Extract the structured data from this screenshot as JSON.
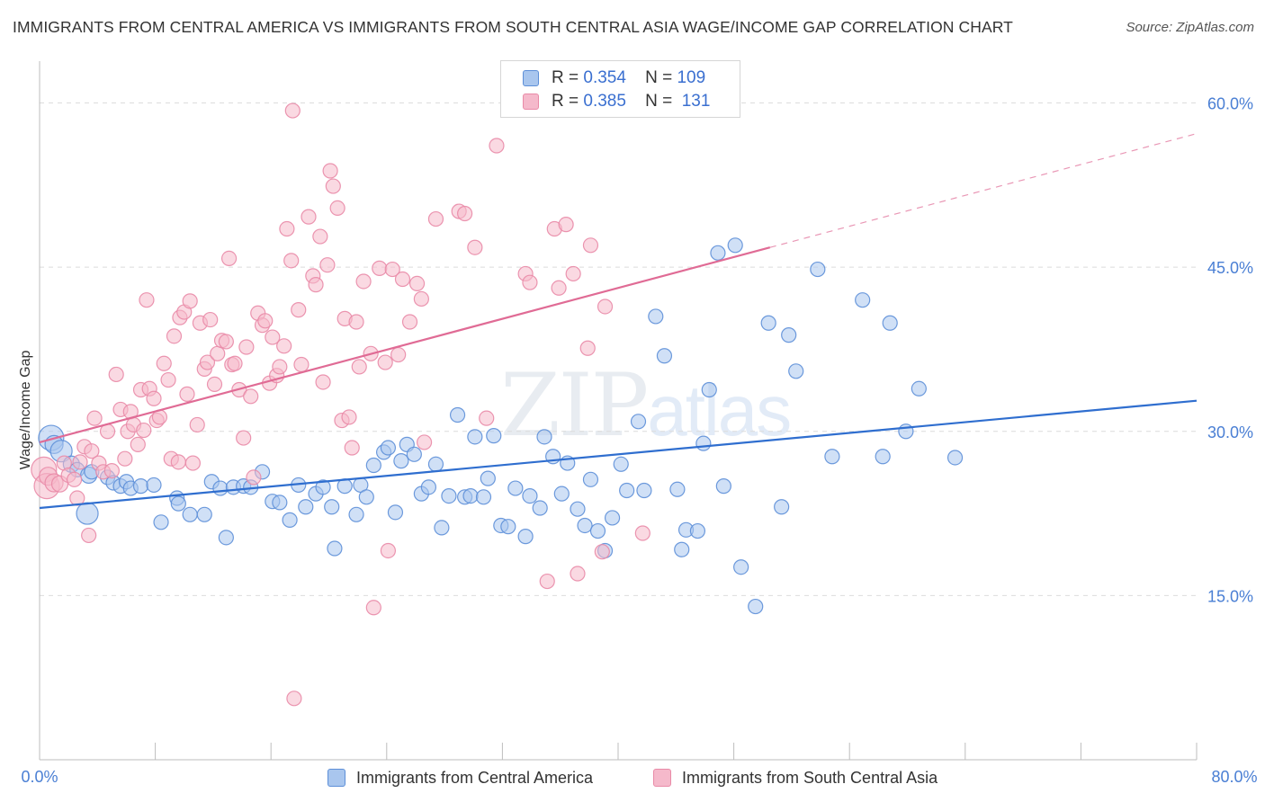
{
  "header": {
    "title": "IMMIGRANTS FROM CENTRAL AMERICA VS IMMIGRANTS FROM SOUTH CENTRAL ASIA WAGE/INCOME GAP CORRELATION CHART",
    "source": "Source: ZipAtlas.com"
  },
  "watermark": {
    "main": "ZIP",
    "sub": "atlas"
  },
  "legend_top": {
    "rows": [
      {
        "r_label": "R =",
        "r_value": "0.354",
        "n_label": "N =",
        "n_value": "109"
      },
      {
        "r_label": "R =",
        "r_value": "0.385",
        "n_label": "N =",
        "n_value": "131"
      }
    ]
  },
  "colors": {
    "blue_fill": "#a9c6ee",
    "blue_stroke": "#5d8fd8",
    "blue_line": "#2f6ecf",
    "pink_fill": "#f5b9cb",
    "pink_stroke": "#e98aa7",
    "pink_line": "#e06b95",
    "grid": "#dcdcdc",
    "tick_text": "#4a7fd4"
  },
  "chart_data": {
    "type": "scatter",
    "title": "IMMIGRANTS FROM CENTRAL AMERICA VS IMMIGRANTS FROM SOUTH CENTRAL ASIA WAGE/INCOME GAP CORRELATION CHART",
    "xlabel": "",
    "ylabel": "Wage/Income Gap",
    "xlim": [
      0,
      80
    ],
    "ylim": [
      0,
      63
    ],
    "x_tick_labels": [
      "0.0%",
      "80.0%"
    ],
    "y_ticks": [
      15,
      30,
      45,
      60
    ],
    "y_tick_labels": [
      "15.0%",
      "30.0%",
      "45.0%",
      "60.0%"
    ],
    "grid": "horizontal dashed",
    "legend_position": "top-center",
    "series": [
      {
        "name": "Immigrants from Central America",
        "r": 0.354,
        "n": 109,
        "trend": {
          "x": [
            0,
            80
          ],
          "y": [
            23.0,
            32.8
          ]
        },
        "points": [
          [
            0.8,
            29.4,
            14
          ],
          [
            1.0,
            28.8,
            10
          ],
          [
            1.5,
            28.2,
            12
          ],
          [
            2.2,
            27.0,
            9
          ],
          [
            2.6,
            26.5,
            8
          ],
          [
            3.4,
            26.0,
            9
          ],
          [
            3.6,
            26.3,
            8
          ],
          [
            3.3,
            22.5,
            12
          ],
          [
            4.7,
            25.8,
            8
          ],
          [
            5.1,
            25.3,
            8
          ],
          [
            5.6,
            25.0,
            8
          ],
          [
            6.0,
            25.4,
            8
          ],
          [
            6.3,
            24.8,
            8
          ],
          [
            7.0,
            25.0,
            8
          ],
          [
            7.9,
            25.1,
            8
          ],
          [
            8.4,
            21.7,
            8
          ],
          [
            9.5,
            23.9,
            8
          ],
          [
            9.6,
            23.4,
            8
          ],
          [
            10.4,
            22.4,
            8
          ],
          [
            11.4,
            22.4,
            8
          ],
          [
            11.9,
            25.4,
            8
          ],
          [
            12.5,
            24.8,
            8
          ],
          [
            12.9,
            20.3,
            8
          ],
          [
            13.4,
            24.9,
            8
          ],
          [
            14.1,
            25.0,
            8
          ],
          [
            14.6,
            24.9,
            8
          ],
          [
            15.4,
            26.3,
            8
          ],
          [
            16.1,
            23.6,
            8
          ],
          [
            16.6,
            23.5,
            8
          ],
          [
            17.3,
            21.9,
            8
          ],
          [
            17.9,
            25.1,
            8
          ],
          [
            18.4,
            23.1,
            8
          ],
          [
            19.1,
            24.3,
            8
          ],
          [
            19.6,
            24.9,
            8
          ],
          [
            20.2,
            23.1,
            8
          ],
          [
            20.4,
            19.3,
            8
          ],
          [
            21.1,
            25.0,
            8
          ],
          [
            21.9,
            22.4,
            8
          ],
          [
            22.2,
            25.1,
            8
          ],
          [
            22.6,
            24.0,
            8
          ],
          [
            23.1,
            26.9,
            8
          ],
          [
            23.8,
            28.1,
            8
          ],
          [
            24.1,
            28.5,
            8
          ],
          [
            24.6,
            22.6,
            8
          ],
          [
            25.0,
            27.3,
            8
          ],
          [
            25.4,
            28.8,
            8
          ],
          [
            25.9,
            27.9,
            8
          ],
          [
            26.4,
            24.3,
            8
          ],
          [
            26.9,
            24.9,
            8
          ],
          [
            27.4,
            27.0,
            8
          ],
          [
            27.8,
            21.2,
            8
          ],
          [
            28.3,
            24.1,
            8
          ],
          [
            28.9,
            31.5,
            8
          ],
          [
            29.4,
            24.0,
            8
          ],
          [
            29.8,
            24.1,
            8
          ],
          [
            30.1,
            29.5,
            8
          ],
          [
            30.7,
            24.0,
            8
          ],
          [
            31.0,
            25.7,
            8
          ],
          [
            31.4,
            29.6,
            8
          ],
          [
            31.9,
            21.4,
            8
          ],
          [
            32.4,
            21.3,
            8
          ],
          [
            32.9,
            24.8,
            8
          ],
          [
            33.6,
            20.4,
            8
          ],
          [
            33.9,
            24.1,
            8
          ],
          [
            34.6,
            23.0,
            8
          ],
          [
            34.9,
            29.5,
            8
          ],
          [
            35.5,
            27.7,
            8
          ],
          [
            36.1,
            24.3,
            8
          ],
          [
            36.5,
            27.1,
            8
          ],
          [
            37.2,
            22.9,
            8
          ],
          [
            37.7,
            21.4,
            8
          ],
          [
            38.1,
            25.6,
            8
          ],
          [
            38.6,
            20.9,
            8
          ],
          [
            39.1,
            19.1,
            8
          ],
          [
            39.6,
            22.1,
            8
          ],
          [
            40.2,
            27.0,
            8
          ],
          [
            40.6,
            24.6,
            8
          ],
          [
            41.4,
            30.9,
            8
          ],
          [
            41.8,
            24.6,
            8
          ],
          [
            42.6,
            40.5,
            8
          ],
          [
            43.2,
            36.9,
            8
          ],
          [
            44.1,
            24.7,
            8
          ],
          [
            44.4,
            19.2,
            8
          ],
          [
            44.7,
            21.0,
            8
          ],
          [
            45.5,
            20.9,
            8
          ],
          [
            45.9,
            28.9,
            8
          ],
          [
            46.3,
            33.8,
            8
          ],
          [
            46.9,
            46.3,
            8
          ],
          [
            47.3,
            25.0,
            8
          ],
          [
            48.1,
            47.0,
            8
          ],
          [
            48.5,
            17.6,
            8
          ],
          [
            49.5,
            14.0,
            8
          ],
          [
            50.4,
            39.9,
            8
          ],
          [
            51.3,
            23.1,
            8
          ],
          [
            51.8,
            38.8,
            8
          ],
          [
            52.3,
            35.5,
            8
          ],
          [
            53.8,
            44.8,
            8
          ],
          [
            54.8,
            27.7,
            8
          ],
          [
            56.9,
            42.0,
            8
          ],
          [
            58.3,
            27.7,
            8
          ],
          [
            58.8,
            39.9,
            8
          ],
          [
            59.9,
            30.0,
            8
          ],
          [
            60.8,
            33.9,
            8
          ],
          [
            63.3,
            27.6,
            8
          ]
        ]
      },
      {
        "name": "Immigrants from South Central Asia",
        "r": 0.385,
        "n": 131,
        "trend": {
          "x": [
            0,
            50.5
          ],
          "y": [
            29.0,
            46.8
          ]
        },
        "trend_dashed": {
          "x": [
            50.5,
            80
          ],
          "y": [
            46.8,
            57.2
          ]
        },
        "points": [
          [
            0.3,
            26.5,
            14
          ],
          [
            0.5,
            25.0,
            14
          ],
          [
            0.6,
            25.9,
            10
          ],
          [
            1.0,
            25.3,
            10
          ],
          [
            1.4,
            25.2,
            9
          ],
          [
            1.7,
            27.1,
            8
          ],
          [
            2.0,
            26.0,
            8
          ],
          [
            2.4,
            25.6,
            8
          ],
          [
            2.6,
            23.9,
            8
          ],
          [
            2.8,
            27.2,
            8
          ],
          [
            3.1,
            28.6,
            8
          ],
          [
            3.4,
            20.5,
            8
          ],
          [
            3.6,
            28.2,
            8
          ],
          [
            3.8,
            31.2,
            8
          ],
          [
            4.1,
            27.1,
            8
          ],
          [
            4.4,
            26.3,
            8
          ],
          [
            4.7,
            30.0,
            8
          ],
          [
            5.0,
            26.4,
            8
          ],
          [
            5.3,
            35.2,
            8
          ],
          [
            5.6,
            32.0,
            8
          ],
          [
            5.9,
            27.5,
            8
          ],
          [
            6.1,
            30.0,
            8
          ],
          [
            6.3,
            31.8,
            8
          ],
          [
            6.5,
            30.6,
            8
          ],
          [
            6.8,
            28.8,
            8
          ],
          [
            7.0,
            33.8,
            8
          ],
          [
            7.2,
            30.1,
            8
          ],
          [
            7.4,
            42.0,
            8
          ],
          [
            7.6,
            33.9,
            8
          ],
          [
            7.9,
            33.0,
            8
          ],
          [
            8.1,
            31.0,
            8
          ],
          [
            8.3,
            31.3,
            8
          ],
          [
            8.6,
            36.2,
            8
          ],
          [
            8.9,
            34.7,
            8
          ],
          [
            9.1,
            27.5,
            8
          ],
          [
            9.3,
            38.7,
            8
          ],
          [
            9.6,
            27.2,
            8
          ],
          [
            9.7,
            40.4,
            8
          ],
          [
            10.0,
            40.9,
            8
          ],
          [
            10.2,
            33.4,
            8
          ],
          [
            10.4,
            41.9,
            8
          ],
          [
            10.6,
            27.1,
            8
          ],
          [
            10.9,
            30.6,
            8
          ],
          [
            11.1,
            39.9,
            8
          ],
          [
            11.4,
            35.7,
            8
          ],
          [
            11.6,
            36.3,
            8
          ],
          [
            11.8,
            40.2,
            8
          ],
          [
            12.1,
            34.3,
            8
          ],
          [
            12.3,
            37.1,
            8
          ],
          [
            12.6,
            38.3,
            8
          ],
          [
            12.9,
            38.2,
            8
          ],
          [
            13.1,
            45.8,
            8
          ],
          [
            13.3,
            36.1,
            8
          ],
          [
            13.5,
            36.2,
            8
          ],
          [
            13.8,
            33.8,
            8
          ],
          [
            14.1,
            29.4,
            8
          ],
          [
            14.3,
            37.7,
            8
          ],
          [
            14.6,
            33.2,
            8
          ],
          [
            14.8,
            25.8,
            8
          ],
          [
            15.1,
            40.8,
            8
          ],
          [
            15.4,
            39.7,
            8
          ],
          [
            15.6,
            40.1,
            8
          ],
          [
            15.9,
            34.4,
            8
          ],
          [
            16.1,
            38.6,
            8
          ],
          [
            16.4,
            35.1,
            8
          ],
          [
            16.6,
            35.9,
            8
          ],
          [
            16.9,
            37.8,
            8
          ],
          [
            17.1,
            48.5,
            8
          ],
          [
            17.4,
            45.6,
            8
          ],
          [
            17.5,
            59.3,
            8
          ],
          [
            17.6,
            5.6,
            8
          ],
          [
            17.9,
            41.1,
            8
          ],
          [
            18.1,
            36.1,
            8
          ],
          [
            18.6,
            49.6,
            8
          ],
          [
            18.9,
            44.2,
            8
          ],
          [
            19.1,
            43.4,
            8
          ],
          [
            19.4,
            47.8,
            8
          ],
          [
            19.6,
            34.5,
            8
          ],
          [
            19.9,
            45.2,
            8
          ],
          [
            20.1,
            53.8,
            8
          ],
          [
            20.3,
            52.4,
            8
          ],
          [
            20.6,
            50.4,
            8
          ],
          [
            20.9,
            31.0,
            8
          ],
          [
            21.1,
            40.3,
            8
          ],
          [
            21.4,
            31.3,
            8
          ],
          [
            21.6,
            28.5,
            8
          ],
          [
            21.9,
            40.0,
            8
          ],
          [
            22.1,
            35.9,
            8
          ],
          [
            22.4,
            43.7,
            8
          ],
          [
            22.9,
            37.1,
            8
          ],
          [
            23.1,
            13.9,
            8
          ],
          [
            23.5,
            44.9,
            8
          ],
          [
            23.9,
            36.3,
            8
          ],
          [
            24.1,
            19.1,
            8
          ],
          [
            24.4,
            44.8,
            8
          ],
          [
            24.8,
            37.0,
            8
          ],
          [
            25.1,
            43.9,
            8
          ],
          [
            25.6,
            40.0,
            8
          ],
          [
            26.1,
            43.5,
            8
          ],
          [
            26.4,
            42.1,
            8
          ],
          [
            26.6,
            29.0,
            8
          ],
          [
            27.4,
            49.4,
            8
          ],
          [
            29.0,
            50.1,
            8
          ],
          [
            29.4,
            49.9,
            8
          ],
          [
            30.1,
            46.8,
            8
          ],
          [
            30.9,
            31.2,
            8
          ],
          [
            31.6,
            56.1,
            8
          ],
          [
            33.6,
            44.4,
            8
          ],
          [
            33.9,
            43.6,
            8
          ],
          [
            35.1,
            16.3,
            8
          ],
          [
            35.6,
            48.5,
            8
          ],
          [
            35.9,
            43.1,
            8
          ],
          [
            36.4,
            48.9,
            8
          ],
          [
            36.9,
            44.4,
            8
          ],
          [
            37.2,
            17.0,
            8
          ],
          [
            37.9,
            37.6,
            8
          ],
          [
            38.1,
            47.0,
            8
          ],
          [
            38.9,
            19.0,
            8
          ],
          [
            39.1,
            41.4,
            8
          ],
          [
            41.7,
            20.7,
            8
          ]
        ]
      }
    ]
  },
  "bottom_legend": [
    {
      "label": "Immigrants from Central America"
    },
    {
      "label": "Immigrants from South Central Asia"
    }
  ]
}
